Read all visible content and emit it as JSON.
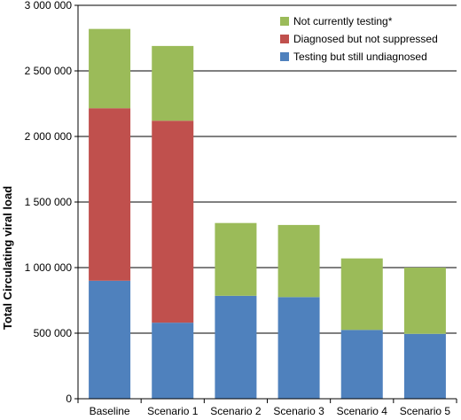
{
  "chart_data": {
    "type": "bar",
    "stacked": true,
    "categories": [
      "Baseline",
      "Scenario 1",
      "Scenario 2",
      "Scenario 3",
      "Scenario 4",
      "Scenario 5"
    ],
    "series": [
      {
        "name": "Testing but still undiagnosed",
        "color": "#4f81bd",
        "values": [
          900000,
          580000,
          785000,
          775000,
          525000,
          495000
        ]
      },
      {
        "name": "Diagnosed but not suppressed",
        "color": "#c0504d",
        "values": [
          1315000,
          1540000,
          0,
          0,
          0,
          0
        ]
      },
      {
        "name": "Not currently testing*",
        "color": "#9bbb59",
        "values": [
          605000,
          570000,
          555000,
          550000,
          545000,
          505000
        ]
      }
    ],
    "ylabel": "Total Circulating viral load",
    "xlabel": "",
    "ylim": [
      0,
      3000000
    ],
    "yticks": [
      0,
      500000,
      1000000,
      1500000,
      2000000,
      2500000,
      3000000
    ],
    "ytick_labels": [
      "0",
      "500 000",
      "1 000 000",
      "1 500 000",
      "2 000 000",
      "2 500 000",
      "3 000 000"
    ],
    "grid": true,
    "legend": {
      "position": "top-right",
      "order": [
        "Not currently testing*",
        "Diagnosed but not suppressed",
        "Testing but still undiagnosed"
      ]
    }
  }
}
